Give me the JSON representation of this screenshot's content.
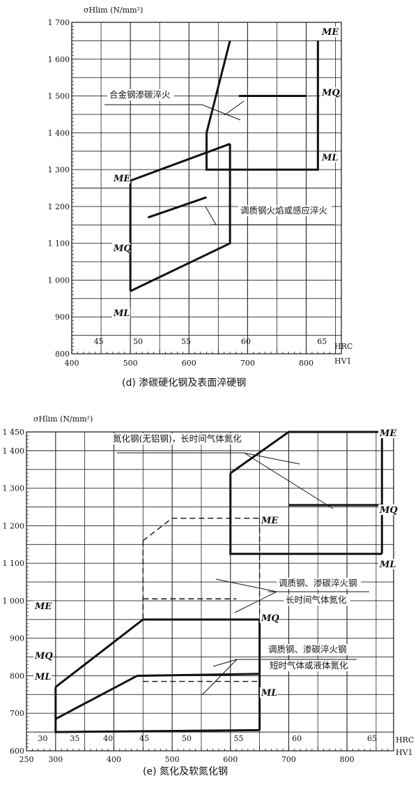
{
  "chart_data": [
    {
      "type": "line",
      "caption": "(d) 渗碳硬化钢及表面淬硬钢",
      "ylabel": "σHlim (N/mm²)",
      "xlabel": "HV1",
      "x2label": "HRC",
      "xlim": [
        400,
        860
      ],
      "ylim": [
        800,
        1700
      ],
      "grid": true,
      "x_ticks": [
        400,
        500,
        600,
        700,
        800
      ],
      "y_ticks": [
        800,
        900,
        1000,
        1100,
        1200,
        1300,
        1400,
        1500,
        1600,
        1700
      ],
      "y_tick_labels": [
        "800",
        "900",
        "1 000",
        "1 100",
        "1 200",
        "1 300",
        "1 400",
        "1 500",
        "1 600",
        "1 700"
      ],
      "hrc_ticks": [
        {
          "label": "45",
          "hv": 446
        },
        {
          "label": "50",
          "hv": 513
        },
        {
          "label": "55",
          "hv": 595
        },
        {
          "label": "60",
          "hv": 697
        },
        {
          "label": "65",
          "hv": 827
        }
      ],
      "groups": [
        {
          "annotation": "合金钢渗碳淬火",
          "series": [
            {
              "name": "ME",
              "points": [
                [
                  630,
                  1400
                ],
                [
                  670,
                  1650
                ]
              ]
            },
            {
              "name": "MQ",
              "points": [
                [
                  685,
                  1500
                ],
                [
                  800,
                  1500
                ]
              ]
            },
            {
              "name": "ML",
              "points": [
                [
                  630,
                  1400
                ],
                [
                  630,
                  1300
                ],
                [
                  820,
                  1300
                ],
                [
                  820,
                  1650
                ]
              ]
            }
          ]
        },
        {
          "annotation": "调质钢火焰或感应淬火",
          "series": [
            {
              "name": "ME",
              "points": [
                [
                  500,
                  1270
                ],
                [
                  670,
                  1370
                ]
              ]
            },
            {
              "name": "MQ",
              "points": [
                [
                  530,
                  1170
                ],
                [
                  630,
                  1225
                ]
              ]
            },
            {
              "name": "ML",
              "points": [
                [
                  500,
                  970
                ],
                [
                  670,
                  1100
                ],
                [
                  670,
                  1370
                ]
              ]
            },
            {
              "name": "",
              "points": [
                [
                  500,
                  970
                ],
                [
                  500,
                  1270
                ]
              ]
            }
          ]
        }
      ],
      "line_labels": [
        "ME",
        "MQ",
        "ML",
        "ME",
        "MQ",
        "ML"
      ]
    },
    {
      "type": "line",
      "caption": "(e) 氮化及软氮化钢",
      "ylabel": "σHlim (N/mm²)",
      "xlabel": "HV1",
      "x2label": "HRC",
      "xlim": [
        250,
        880
      ],
      "ylim": [
        600,
        1450
      ],
      "grid": true,
      "x_ticks": [
        250,
        300,
        400,
        500,
        600,
        700,
        800
      ],
      "y_ticks": [
        600,
        700,
        800,
        900,
        1000,
        1100,
        1200,
        1300,
        1400,
        1450
      ],
      "y_tick_labels": [
        "600",
        "700",
        "800",
        "900",
        "1 000",
        "1 100",
        "1 200",
        "1 300",
        "1 400",
        "1 450"
      ],
      "hrc_ticks": [
        {
          "label": "30",
          "hv": 278
        },
        {
          "label": "35",
          "hv": 333
        },
        {
          "label": "40",
          "hv": 390
        },
        {
          "label": "45",
          "hv": 452
        },
        {
          "label": "50",
          "hv": 525
        },
        {
          "label": "55",
          "hv": 614
        },
        {
          "label": "60",
          "hv": 714
        },
        {
          "label": "65",
          "hv": 843
        }
      ],
      "groups": [
        {
          "annotation": "氮化钢(无铝钢)，长时间气体氮化",
          "series": [
            {
              "name": "ME",
              "points": [
                [
                  600,
                  1340
                ],
                [
                  700,
                  1450
                ],
                [
                  860,
                  1450
                ],
                [
                  860,
                  1125
                ]
              ]
            },
            {
              "name": "MQ",
              "points": [
                [
                  700,
                  1255
                ],
                [
                  860,
                  1255
                ]
              ]
            },
            {
              "name": "ML",
              "points": [
                [
                  600,
                  1340
                ],
                [
                  600,
                  1125
                ],
                [
                  860,
                  1125
                ]
              ]
            }
          ]
        },
        {
          "annotation": [
            "调质钢、渗碳淬火钢",
            "长时间气体氮化"
          ],
          "dashed": true,
          "series": [
            {
              "name": "ME",
              "points": [
                [
                  450,
                  1160
                ],
                [
                  500,
                  1220
                ],
                [
                  650,
                  1220
                ]
              ]
            },
            {
              "name": "MQ",
              "points": [
                [
                  450,
                  1005
                ],
                [
                  610,
                  1005
                ]
              ]
            },
            {
              "name": "ML",
              "points": [
                [
                  450,
                  785
                ],
                [
                  650,
                  785
                ]
              ]
            },
            {
              "name": "",
              "points": [
                [
                  450,
                  1160
                ],
                [
                  450,
                  950
                ]
              ]
            },
            {
              "name": "",
              "points": [
                [
                  650,
                  1220
                ],
                [
                  650,
                  950
                ]
              ]
            }
          ]
        },
        {
          "annotation": [
            "调质钢、渗碳淬火钢",
            "短时气体或液体氮化"
          ],
          "series": [
            {
              "name": "ME",
              "points": [
                [
                  300,
                  770
                ],
                [
                  450,
                  950
                ],
                [
                  650,
                  950
                ],
                [
                  650,
                  655
                ]
              ]
            },
            {
              "name": "MQ",
              "points": [
                [
                  300,
                  685
                ],
                [
                  440,
                  800
                ],
                [
                  650,
                  805
                ]
              ]
            },
            {
              "name": "ML",
              "points": [
                [
                  300,
                  770
                ],
                [
                  300,
                  650
                ],
                [
                  650,
                  655
                ]
              ]
            }
          ]
        }
      ],
      "line_labels": [
        "ME",
        "MQ",
        "ML",
        "ME",
        "MQ",
        "ML",
        "ME",
        "MQ",
        "ML"
      ]
    }
  ]
}
